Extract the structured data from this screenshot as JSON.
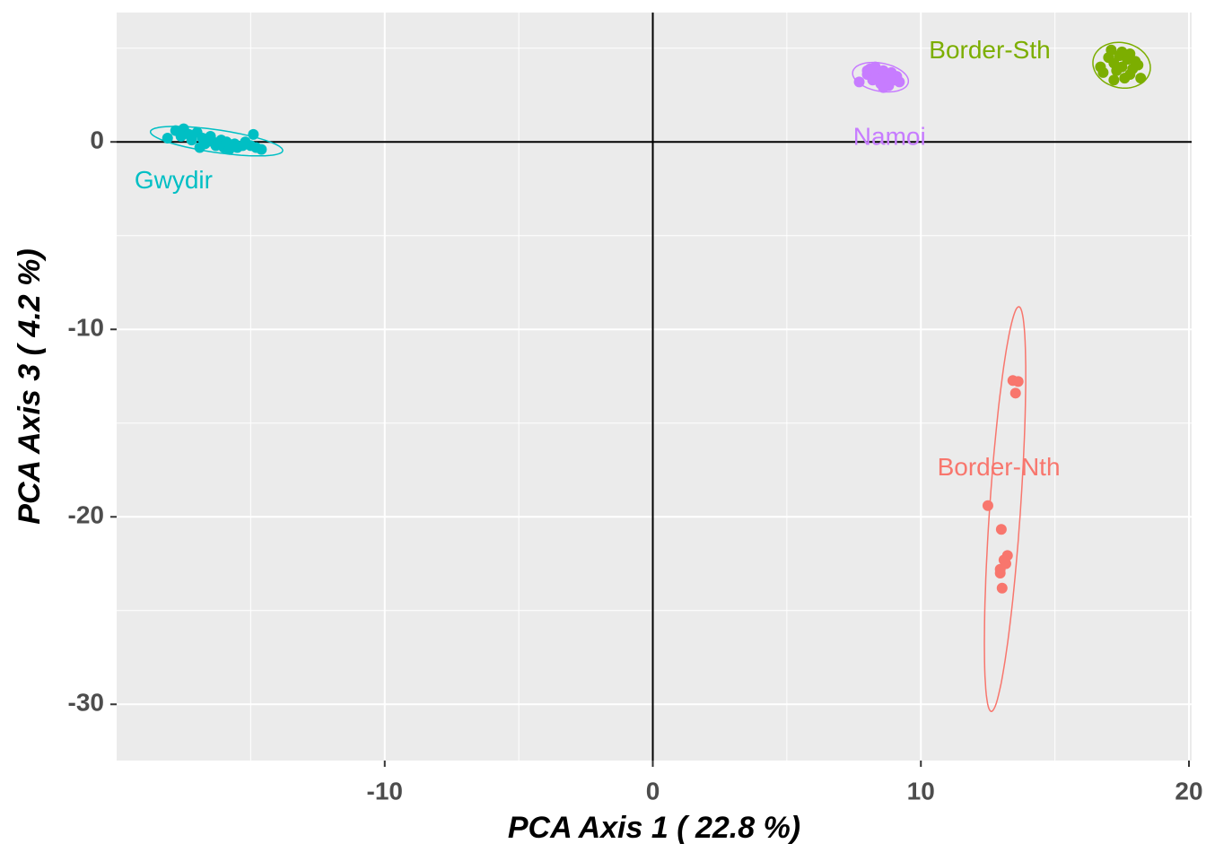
{
  "chart_data": {
    "type": "scatter",
    "x_label": "PCA Axis 1 ( 22.8 %)",
    "y_label": "PCA Axis 3 ( 4.2 %)",
    "xlim": [
      -20,
      20.1
    ],
    "ylim": [
      -33,
      6.9
    ],
    "xticks": [
      -10,
      0,
      10,
      20
    ],
    "yticks": [
      -30,
      -20,
      -10,
      0
    ],
    "grid": true,
    "reference_lines": {
      "x": 0,
      "y": 0
    },
    "series": [
      {
        "name": "Border-Nth",
        "color": "#F8766D",
        "x": [
          13.43,
          13.63,
          13.53,
          12.5,
          13.0,
          13.23,
          13.1,
          12.96,
          13.17,
          13.03,
          12.96
        ],
        "values": [
          -12.73,
          -12.78,
          -13.4,
          -19.4,
          -20.67,
          -22.06,
          -22.3,
          -22.8,
          -22.5,
          -23.8,
          -23.0
        ]
      },
      {
        "name": "Border-Sth",
        "color": "#7CAE00",
        "x": [
          16.7,
          16.8,
          17.0,
          17.1,
          17.2,
          17.3,
          17.4,
          17.5,
          17.6,
          17.7,
          17.8,
          17.9,
          18.0,
          18.1,
          18.2,
          17.2,
          17.5,
          17.8
        ],
        "values": [
          4.0,
          3.7,
          4.5,
          4.9,
          4.2,
          3.8,
          4.6,
          4.0,
          3.4,
          4.4,
          4.7,
          3.9,
          4.3,
          4.1,
          3.4,
          3.3,
          4.8,
          3.6
        ]
      },
      {
        "name": "Gwydir",
        "color": "#00BFC4",
        "x": [
          -18.1,
          -17.8,
          -17.5,
          -17.3,
          -17.2,
          -17.0,
          -16.8,
          -16.7,
          -16.5,
          -16.4,
          -16.3,
          -16.1,
          -16.0,
          -15.9,
          -15.8,
          -15.6,
          -15.5,
          -15.3,
          -15.2,
          -15.0,
          -14.9,
          -14.8,
          -14.6,
          -17.6,
          -16.9
        ],
        "values": [
          0.2,
          0.6,
          0.7,
          0.4,
          0.1,
          0.5,
          0.2,
          -0.1,
          0.3,
          0.0,
          -0.2,
          0.1,
          -0.3,
          0.0,
          -0.4,
          -0.1,
          -0.3,
          -0.2,
          0.0,
          -0.2,
          0.4,
          -0.3,
          -0.4,
          0.3,
          -0.3
        ]
      },
      {
        "name": "Namoi",
        "color": "#C77CFF",
        "x": [
          7.7,
          8.0,
          8.1,
          8.2,
          8.3,
          8.4,
          8.5,
          8.6,
          8.7,
          8.8,
          8.9,
          9.0,
          9.1,
          9.2,
          8.3,
          8.6,
          8.0
        ],
        "values": [
          3.2,
          3.6,
          3.9,
          3.3,
          4.0,
          3.6,
          3.1,
          3.8,
          3.4,
          3.0,
          3.7,
          3.3,
          3.5,
          3.2,
          3.4,
          2.9,
          3.8
        ]
      }
    ]
  }
}
